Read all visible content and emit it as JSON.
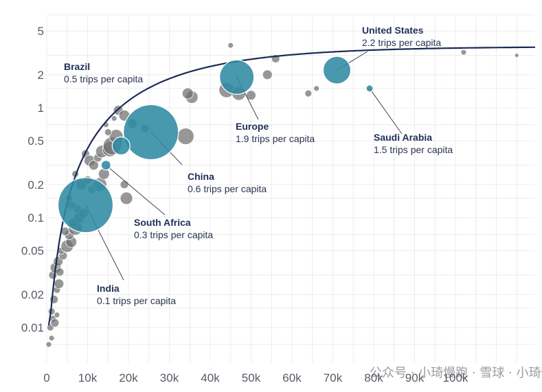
{
  "chart_data": {
    "type": "scatter",
    "xlabel": "",
    "ylabel": "",
    "x_axis": {
      "scale": "linear",
      "range": [
        0,
        120000
      ],
      "ticks": [
        0,
        10000,
        20000,
        30000,
        40000,
        50000,
        60000,
        70000,
        80000,
        90000,
        100000
      ],
      "tick_labels": [
        "0",
        "10k",
        "20k",
        "30k",
        "40k",
        "50k",
        "60k",
        "70k",
        "80k",
        "90k",
        "100k"
      ]
    },
    "y_axis": {
      "scale": "log",
      "range": [
        0.006,
        8
      ],
      "ticks": [
        0.01,
        0.02,
        0.05,
        0.1,
        0.2,
        0.5,
        1,
        2,
        5
      ],
      "tick_labels": [
        "0.01",
        "0.02",
        "0.05",
        "0.1",
        "0.2",
        "0.5",
        "1",
        "2",
        "5"
      ]
    },
    "grid": true,
    "highlighted": [
      {
        "name": "United States",
        "subtitle": "2.2 trips per capita",
        "x": 71000,
        "y": 2.2,
        "size": 20
      },
      {
        "name": "Europe",
        "subtitle": "1.9 trips per capita",
        "x": 46500,
        "y": 1.9,
        "size": 25
      },
      {
        "name": "China",
        "subtitle": "0.6 trips per capita",
        "x": 25500,
        "y": 0.6,
        "size": 40
      },
      {
        "name": "Brazil",
        "subtitle": "0.5 trips per capita",
        "x": 18200,
        "y": 0.45,
        "size": 13
      },
      {
        "name": "South Africa",
        "subtitle": "0.3 trips per capita",
        "x": 14500,
        "y": 0.3,
        "size": 7
      },
      {
        "name": "India",
        "subtitle": "0.1 trips per capita",
        "x": 9500,
        "y": 0.13,
        "size": 40
      },
      {
        "name": "Saudi Arabia",
        "subtitle": "1.5 trips per capita",
        "x": 79000,
        "y": 1.5,
        "size": 5
      }
    ],
    "others": [
      [
        500,
        0.007,
        4
      ],
      [
        1200,
        0.008,
        4
      ],
      [
        900,
        0.01,
        5
      ],
      [
        1500,
        0.012,
        5
      ],
      [
        2000,
        0.011,
        6
      ],
      [
        1200,
        0.014,
        5
      ],
      [
        2500,
        0.013,
        4
      ],
      [
        1800,
        0.018,
        6
      ],
      [
        2500,
        0.022,
        5
      ],
      [
        3000,
        0.025,
        7
      ],
      [
        1500,
        0.03,
        6
      ],
      [
        2200,
        0.035,
        8
      ],
      [
        3200,
        0.032,
        6
      ],
      [
        2800,
        0.04,
        7
      ],
      [
        4000,
        0.045,
        6
      ],
      [
        3500,
        0.05,
        5
      ],
      [
        5000,
        0.055,
        9
      ],
      [
        6000,
        0.06,
        8
      ],
      [
        5500,
        0.07,
        7
      ],
      [
        4500,
        0.075,
        6
      ],
      [
        7000,
        0.08,
        10
      ],
      [
        6500,
        0.09,
        7
      ],
      [
        8000,
        0.1,
        8
      ],
      [
        7500,
        0.12,
        6
      ],
      [
        9000,
        0.11,
        7
      ],
      [
        6000,
        0.13,
        6
      ],
      [
        5500,
        0.15,
        5
      ],
      [
        11000,
        0.18,
        6
      ],
      [
        8500,
        0.2,
        8
      ],
      [
        10000,
        0.22,
        6
      ],
      [
        7000,
        0.25,
        5
      ],
      [
        13000,
        0.2,
        10
      ],
      [
        14000,
        0.25,
        8
      ],
      [
        19000,
        0.2,
        6
      ],
      [
        19500,
        0.15,
        9
      ],
      [
        9500,
        0.38,
        6
      ],
      [
        10500,
        0.33,
        8
      ],
      [
        11500,
        0.3,
        7
      ],
      [
        12500,
        0.35,
        6
      ],
      [
        13500,
        0.4,
        9
      ],
      [
        15500,
        0.42,
        11
      ],
      [
        16000,
        0.45,
        13
      ],
      [
        17000,
        0.55,
        10
      ],
      [
        15000,
        0.6,
        5
      ],
      [
        14500,
        0.7,
        4
      ],
      [
        16500,
        0.8,
        4
      ],
      [
        17500,
        0.95,
        7
      ],
      [
        19000,
        0.85,
        8
      ],
      [
        21000,
        0.72,
        7
      ],
      [
        24000,
        0.65,
        6
      ],
      [
        34000,
        0.55,
        12
      ],
      [
        35500,
        1.25,
        9
      ],
      [
        34500,
        1.35,
        8
      ],
      [
        44000,
        1.45,
        11
      ],
      [
        47000,
        1.35,
        10
      ],
      [
        50000,
        1.3,
        7
      ],
      [
        45000,
        3.7,
        4
      ],
      [
        56000,
        2.8,
        6
      ],
      [
        54000,
        2.0,
        7
      ],
      [
        64000,
        1.35,
        5
      ],
      [
        66000,
        1.5,
        4
      ],
      [
        102000,
        3.2,
        4
      ],
      [
        115000,
        3.0,
        3
      ]
    ]
  },
  "watermark": "公众号 · 小琦慢跑 · 雪球 · 小琦慢跑"
}
